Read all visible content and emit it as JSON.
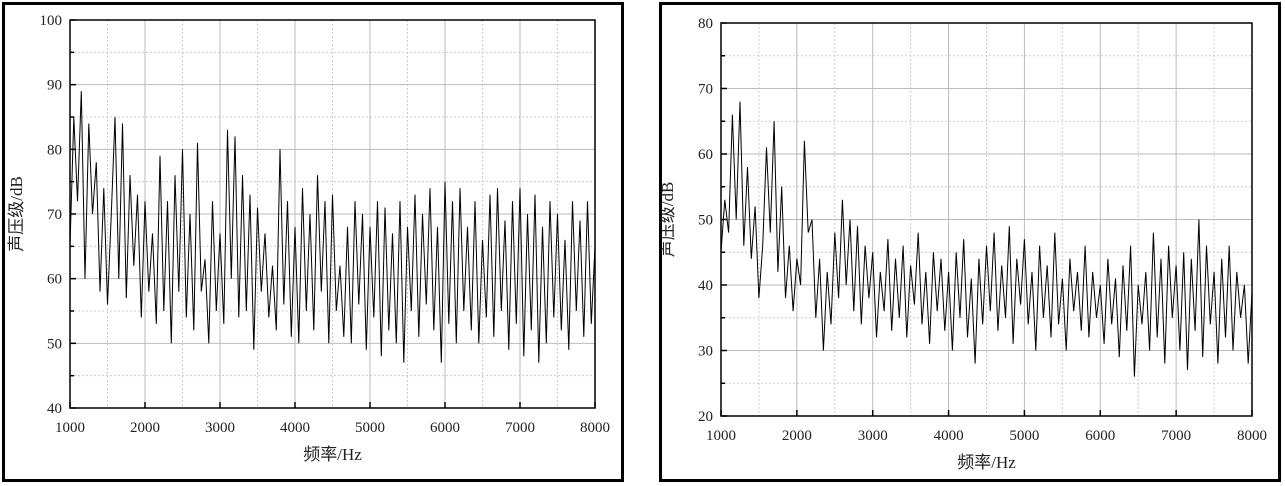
{
  "chart_data": [
    {
      "type": "line",
      "xlabel": "频率/Hz",
      "ylabel": "声压级/dB",
      "xlim": [
        1000,
        8000
      ],
      "ylim": [
        40,
        100
      ],
      "xticks": [
        1000,
        2000,
        3000,
        4000,
        5000,
        6000,
        7000,
        8000
      ],
      "yticks": [
        40,
        50,
        60,
        70,
        80,
        90,
        100
      ],
      "grid": true,
      "x_start": 1000,
      "x_step": 50,
      "y": [
        65,
        85,
        72,
        89,
        60,
        84,
        70,
        78,
        58,
        74,
        56,
        70,
        85,
        60,
        84,
        57,
        76,
        62,
        73,
        54,
        72,
        58,
        67,
        53,
        79,
        55,
        72,
        50,
        76,
        58,
        80,
        54,
        70,
        52,
        81,
        58,
        63,
        50,
        72,
        55,
        67,
        53,
        83,
        60,
        82,
        54,
        76,
        55,
        73,
        49,
        71,
        58,
        67,
        54,
        62,
        52,
        80,
        56,
        72,
        51,
        68,
        50,
        74,
        55,
        70,
        52,
        76,
        58,
        72,
        50,
        73,
        55,
        62,
        51,
        68,
        50,
        72,
        56,
        70,
        49,
        68,
        54,
        72,
        48,
        71,
        52,
        67,
        50,
        72,
        47,
        68,
        55,
        73,
        51,
        70,
        56,
        74,
        52,
        68,
        47,
        75,
        53,
        72,
        50,
        74,
        55,
        68,
        52,
        72,
        50,
        66,
        54,
        73,
        51,
        74,
        55,
        69,
        49,
        72,
        53,
        74,
        48,
        70,
        52,
        73,
        47,
        68,
        50,
        72,
        54,
        70,
        52,
        66,
        49,
        72,
        55,
        69,
        51,
        72,
        53,
        65
      ]
    },
    {
      "type": "line",
      "xlabel": "频率/Hz",
      "ylabel": "声压级/dB",
      "xlim": [
        1000,
        8000
      ],
      "ylim": [
        20,
        80
      ],
      "xticks": [
        1000,
        2000,
        3000,
        4000,
        5000,
        6000,
        7000,
        8000
      ],
      "yticks": [
        20,
        30,
        40,
        50,
        60,
        70,
        80
      ],
      "grid": true,
      "x_start": 1000,
      "x_step": 50,
      "y": [
        45,
        53,
        48,
        66,
        50,
        68,
        46,
        58,
        44,
        52,
        38,
        46,
        61,
        48,
        65,
        42,
        55,
        38,
        46,
        36,
        44,
        40,
        62,
        48,
        50,
        35,
        44,
        30,
        42,
        34,
        48,
        38,
        53,
        40,
        50,
        36,
        49,
        34,
        46,
        38,
        45,
        32,
        42,
        36,
        47,
        33,
        44,
        35,
        46,
        32,
        43,
        37,
        48,
        34,
        42,
        31,
        45,
        36,
        44,
        33,
        42,
        30,
        45,
        35,
        47,
        32,
        41,
        28,
        44,
        34,
        46,
        36,
        48,
        33,
        43,
        35,
        49,
        31,
        44,
        37,
        47,
        34,
        42,
        30,
        46,
        35,
        43,
        32,
        48,
        34,
        41,
        30,
        44,
        36,
        42,
        33,
        46,
        32,
        42,
        35,
        40,
        31,
        44,
        34,
        41,
        29,
        43,
        33,
        46,
        26,
        40,
        34,
        42,
        30,
        48,
        32,
        44,
        28,
        46,
        35,
        43,
        30,
        45,
        27,
        44,
        33,
        50,
        29,
        46,
        34,
        42,
        28,
        44,
        32,
        46,
        30,
        42,
        35,
        40,
        28,
        39
      ]
    }
  ]
}
